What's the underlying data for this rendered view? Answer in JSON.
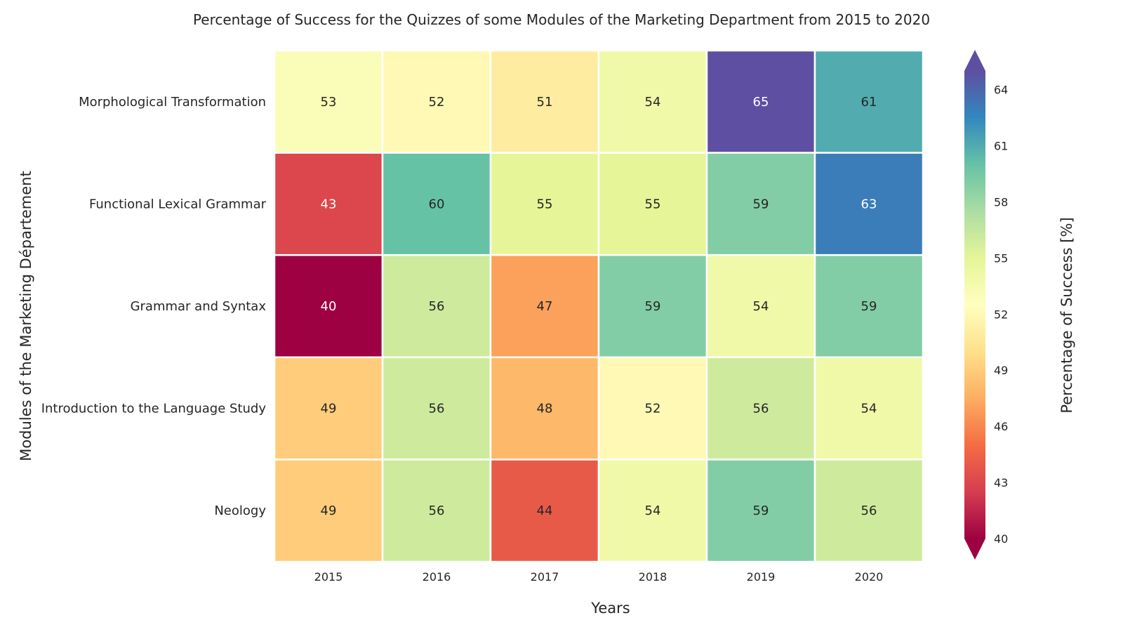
{
  "chart_data": {
    "type": "heatmap",
    "title": "Percentage of Success for the Quizzes of some Modules of the Marketing Department from 2015 to 2020",
    "xlabel": "Years",
    "ylabel": "Modules of the Marketing Département",
    "colorbar_label": "Percentage of Success [%]",
    "x": [
      "2015",
      "2016",
      "2017",
      "2018",
      "2019",
      "2020"
    ],
    "y": [
      "Morphological Transformation",
      "Functional Lexical Grammar",
      "Grammar and Syntax",
      "Introduction to the Language Study",
      "Neology"
    ],
    "values": [
      [
        53,
        52,
        51,
        54,
        65,
        61
      ],
      [
        43,
        60,
        55,
        55,
        59,
        63
      ],
      [
        40,
        56,
        47,
        59,
        54,
        59
      ],
      [
        49,
        56,
        48,
        52,
        56,
        54
      ],
      [
        49,
        56,
        44,
        54,
        59,
        56
      ]
    ],
    "colorbar_ticks": [
      40,
      43,
      46,
      49,
      52,
      55,
      58,
      61,
      64
    ],
    "vmin": 40,
    "vmax": 65,
    "colormap": "Spectral",
    "colormap_stops": [
      "#9e0142",
      "#d53e4f",
      "#f46d43",
      "#fdae61",
      "#fee08b",
      "#ffffbf",
      "#e6f598",
      "#abdda4",
      "#66c2a5",
      "#3288bd",
      "#5e4fa2"
    ]
  }
}
